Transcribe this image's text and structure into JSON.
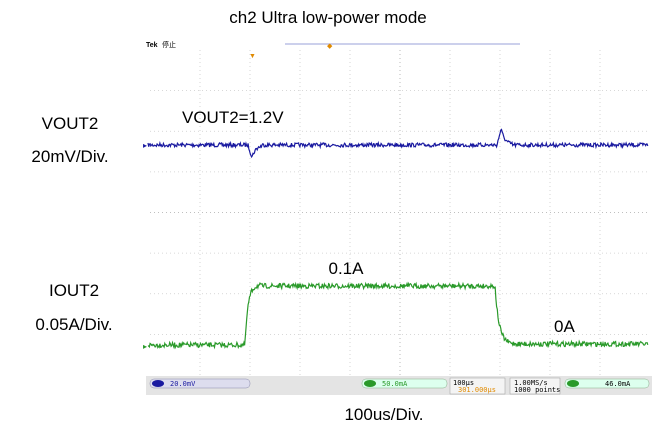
{
  "title": "ch2 Ultra low-power mode",
  "scope": {
    "brand": "Tek",
    "state": "停止"
  },
  "channels": [
    {
      "name": "VOUT2",
      "scale": "20mV/Div.",
      "annotation": "VOUT2=1.2V"
    },
    {
      "name": "IOUT2",
      "scale": "0.05A/Div.",
      "annotations": [
        "0.1A",
        "0A"
      ]
    }
  ],
  "timebase": "100us/Div.",
  "status": {
    "ch1": "20.0mV",
    "ch2": "50.0mA",
    "horizontal": "100µs",
    "position": "301.000µs",
    "sample_rate": "1.00MS/s",
    "record": "1000 points",
    "trigger": "46.0mA"
  }
}
